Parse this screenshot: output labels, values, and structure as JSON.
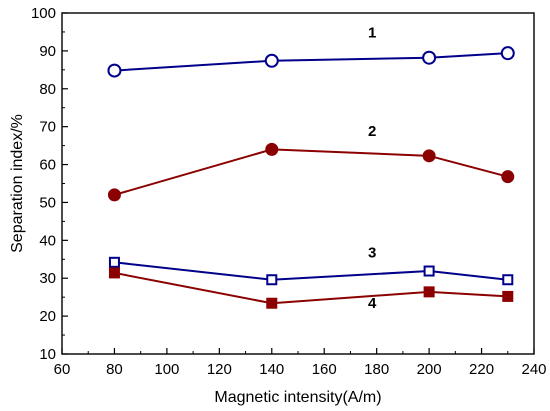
{
  "chart_data": {
    "type": "line",
    "title": "",
    "xlabel": "Magnetic intensity(A/m)",
    "ylabel": "Separation index/%",
    "xlim": [
      60,
      240
    ],
    "ylim": [
      10,
      100
    ],
    "x_ticks": [
      60,
      80,
      100,
      120,
      140,
      160,
      180,
      200,
      220,
      240
    ],
    "y_ticks": [
      10,
      20,
      30,
      40,
      50,
      60,
      70,
      80,
      90,
      100
    ],
    "x": [
      80,
      140,
      200,
      230
    ],
    "grid": false,
    "legend": "none",
    "series": [
      {
        "name": "1",
        "values": [
          84.8,
          87.4,
          88.2,
          89.4
        ],
        "color": "#00008b",
        "marker": "circle",
        "filled": false,
        "label_at": [
          200,
          93.5
        ]
      },
      {
        "name": "2",
        "values": [
          52.0,
          64.0,
          62.3,
          56.8
        ],
        "color": "#8b0000",
        "marker": "circle",
        "filled": true,
        "label_at": [
          200,
          67.5
        ]
      },
      {
        "name": "3",
        "values": [
          34.2,
          29.6,
          31.9,
          29.6
        ],
        "color": "#00008b",
        "marker": "square",
        "filled": false,
        "label_at": [
          200,
          35.5
        ]
      },
      {
        "name": "4",
        "values": [
          31.4,
          23.4,
          26.4,
          25.2
        ],
        "color": "#8b0000",
        "marker": "square",
        "filled": true,
        "label_at": [
          200,
          22.2
        ]
      }
    ]
  }
}
